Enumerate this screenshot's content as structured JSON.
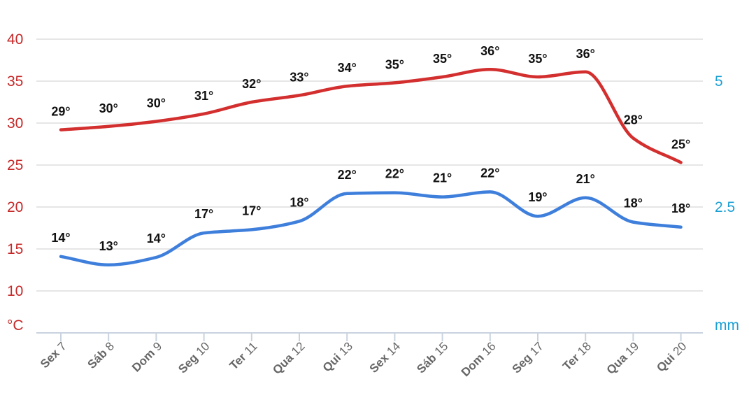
{
  "chart_data": {
    "type": "line",
    "categories": [
      {
        "day": "Sex",
        "num": "7"
      },
      {
        "day": "Sáb",
        "num": "8"
      },
      {
        "day": "Dom",
        "num": "9"
      },
      {
        "day": "Seg",
        "num": "10"
      },
      {
        "day": "Ter",
        "num": "11"
      },
      {
        "day": "Qua",
        "num": "12"
      },
      {
        "day": "Qui",
        "num": "13"
      },
      {
        "day": "Sex",
        "num": "14"
      },
      {
        "day": "Sáb",
        "num": "15"
      },
      {
        "day": "Dom",
        "num": "16"
      },
      {
        "day": "Seg",
        "num": "17"
      },
      {
        "day": "Ter",
        "num": "18"
      },
      {
        "day": "Qua",
        "num": "19"
      },
      {
        "day": "Qui",
        "num": "20"
      }
    ],
    "series": [
      {
        "color": "#d32f2f",
        "values": [
          29.2,
          29.6,
          30.2,
          31.1,
          32.5,
          33.3,
          34.4,
          34.8,
          35.5,
          36.4,
          35.5,
          36.1,
          28.2,
          25.3
        ],
        "labels": [
          "29°",
          "30°",
          "30°",
          "31°",
          "32°",
          "33°",
          "34°",
          "35°",
          "35°",
          "36°",
          "35°",
          "36°",
          "28°",
          "25°"
        ]
      },
      {
        "color": "#3f7fdc",
        "values": [
          14.1,
          13.1,
          14.0,
          16.9,
          17.3,
          18.3,
          21.6,
          21.7,
          21.2,
          21.8,
          18.9,
          21.1,
          18.2,
          17.6
        ],
        "labels": [
          "14°",
          "13°",
          "14°",
          "17°",
          "17°",
          "18°",
          "22°",
          "22°",
          "21°",
          "22°",
          "19°",
          "21°",
          "18°",
          "18°"
        ]
      }
    ],
    "y_left": {
      "ticks": [
        "40",
        "35",
        "30",
        "25",
        "20",
        "15",
        "10"
      ],
      "tick_values": [
        40,
        35,
        30,
        25,
        20,
        15,
        10
      ],
      "range": [
        5,
        40
      ],
      "unit": "°C",
      "color": "#c62828"
    },
    "y_right": {
      "ticks": [
        "5",
        "2.5"
      ],
      "tick_values_left_scale": [
        35,
        20
      ],
      "unit": "mm",
      "color": "#1a9fd4"
    },
    "grid": true,
    "grid_color": "#e6e6e6",
    "axis_color": "#c9d3df",
    "legend": "none"
  }
}
